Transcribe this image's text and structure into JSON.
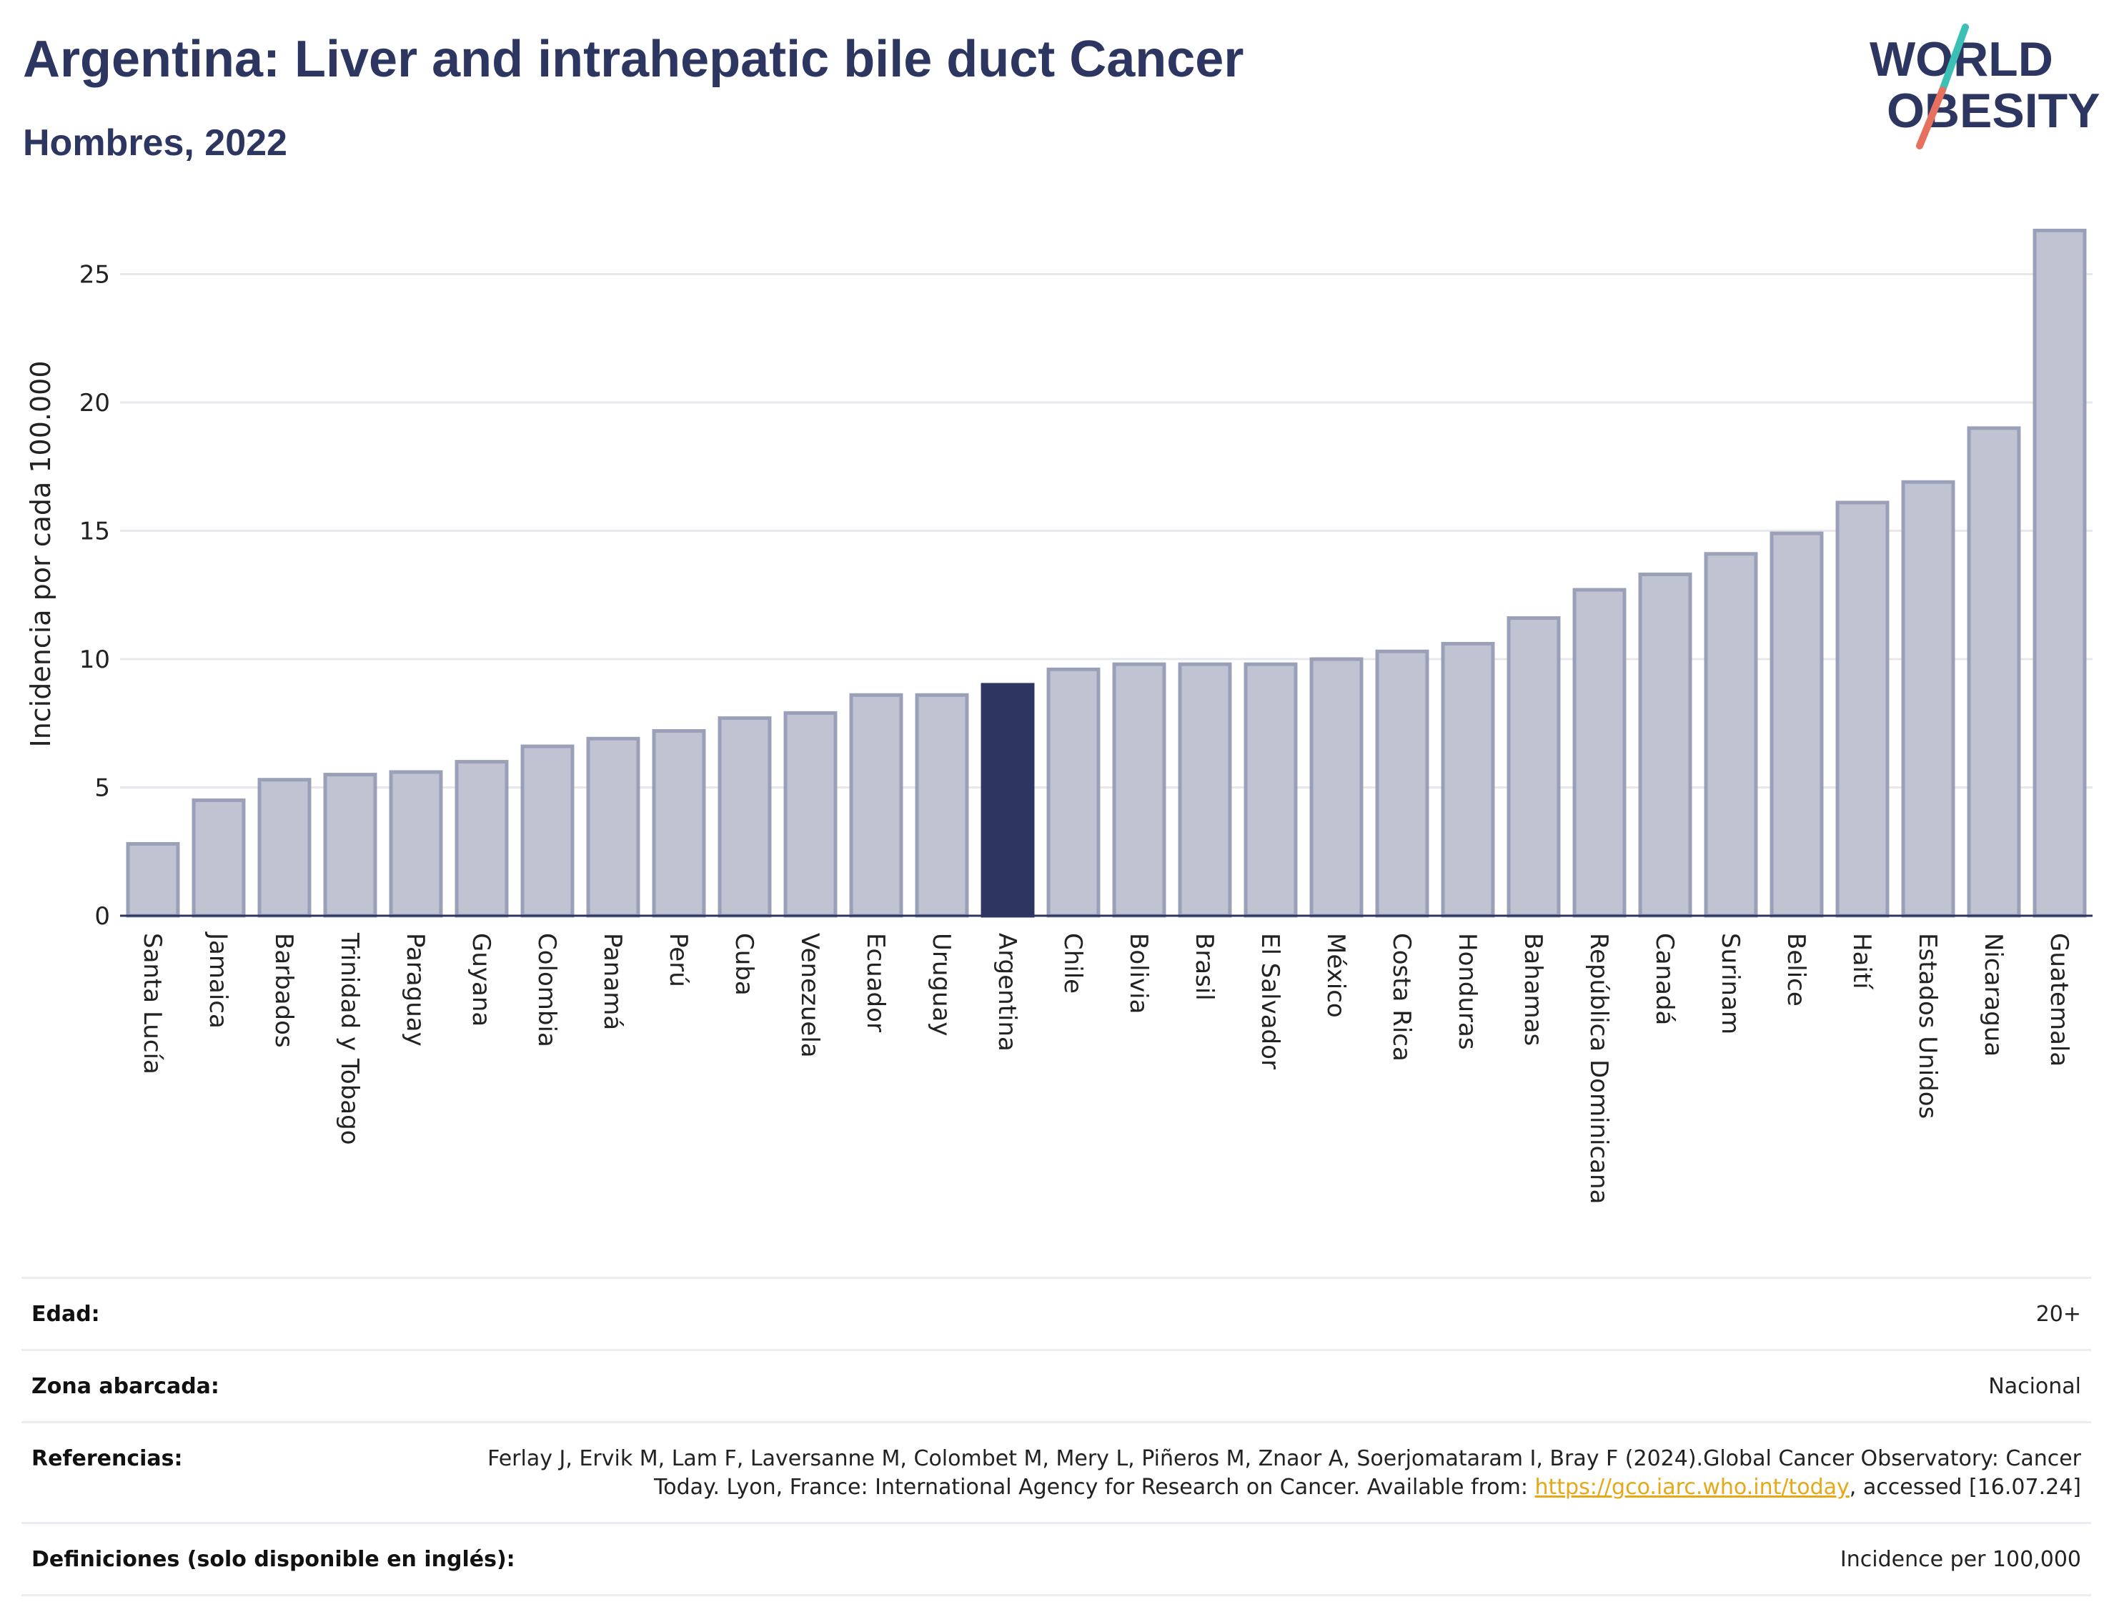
{
  "header": {
    "title": "Argentina: Liver and intrahepatic bile duct Cancer",
    "subtitle": "Hombres, 2022"
  },
  "logo": {
    "line1": "WORLD",
    "line2": "OBESITY",
    "colors": {
      "text": "#2d3561",
      "slash_top": "#3cbfb4",
      "slash_bottom": "#e8705f"
    }
  },
  "colors": {
    "bar": "#c0c4d2",
    "bar_stroke": "#9aa0b8",
    "highlight": "#2d3561",
    "grid": "#e6e8ee",
    "axis": "#2d3561"
  },
  "chart_data": {
    "type": "bar",
    "ylabel": "Incidencia por cada 100.000",
    "ylim": [
      0,
      27
    ],
    "yticks": [
      0,
      5,
      10,
      15,
      20,
      25
    ],
    "grid": true,
    "highlight": "Argentina",
    "categories": [
      "Santa Lucía",
      "Jamaica",
      "Barbados",
      "Trinidad y Tobago",
      "Paraguay",
      "Guyana",
      "Colombia",
      "Panamá",
      "Perú",
      "Cuba",
      "Venezuela",
      "Ecuador",
      "Uruguay",
      "Argentina",
      "Chile",
      "Bolivia",
      "Brasil",
      "El Salvador",
      "México",
      "Costa Rica",
      "Honduras",
      "Bahamas",
      "República Dominicana",
      "Canadá",
      "Surinam",
      "Belice",
      "Haití",
      "Estados Unidos",
      "Nicaragua",
      "Guatemala"
    ],
    "values": [
      2.8,
      4.5,
      5.3,
      5.5,
      5.6,
      6.0,
      6.6,
      6.9,
      7.2,
      7.7,
      7.9,
      8.6,
      8.6,
      9.0,
      9.6,
      9.8,
      9.8,
      9.8,
      10.0,
      10.3,
      10.6,
      11.6,
      12.7,
      13.3,
      14.1,
      14.9,
      16.1,
      16.9,
      19.0,
      26.7
    ]
  },
  "info": {
    "rows": [
      {
        "label": "Edad:",
        "value": "20+"
      },
      {
        "label": "Zona abarcada:",
        "value": "Nacional"
      },
      {
        "label": "Referencias:",
        "value": "Ferlay J, Ervik M, Lam F, Laversanne M, Colombet M, Mery L, Piñeros M, Znaor A, Soerjomataram I, Bray F (2024).Global Cancer Observatory: Cancer Today. Lyon, France: International Agency for Research on Cancer. Available from: ",
        "link": "https://gco.iarc.who.int/today",
        "value_after": ", accessed [16.07.24]"
      },
      {
        "label": "Definiciones (solo disponible en inglés):",
        "value": "Incidence per 100,000"
      }
    ]
  }
}
